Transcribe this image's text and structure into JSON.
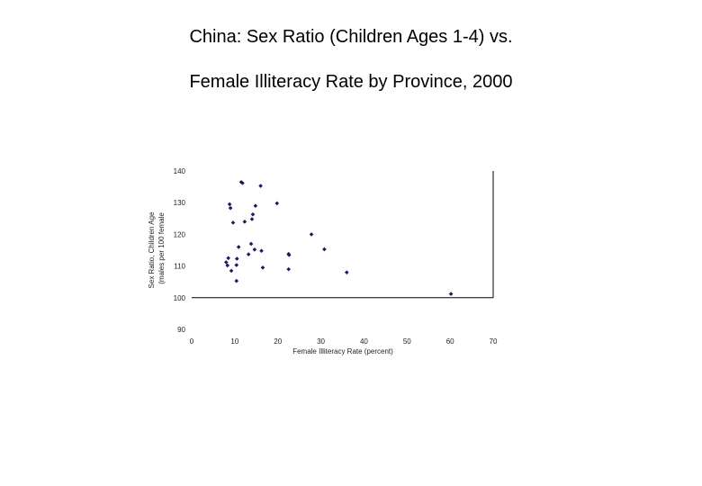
{
  "chart_data": {
    "type": "scatter",
    "title_line1": "China: Sex Ratio (Children Ages 1-4) vs.",
    "title_line2": "Female Illiteracy Rate by Province, 2000",
    "xlabel": "Female Illiteracy Rate (percent)",
    "ylabel_line1": "Sex Ratio, Children Age",
    "ylabel_line2": "(males per 100 female",
    "xlim": [
      0,
      70
    ],
    "ylim": [
      90,
      140
    ],
    "x_ticks": [
      "0",
      "10",
      "20",
      "30",
      "40",
      "50",
      "60",
      "70"
    ],
    "y_ticks": [
      "90",
      "100",
      "110",
      "120",
      "130",
      "140"
    ],
    "x_axis_crosses_y": 100,
    "point_color": "#1a1a5e",
    "points": [
      {
        "x": 11.5,
        "y": 136.5
      },
      {
        "x": 11.8,
        "y": 136.2
      },
      {
        "x": 16.0,
        "y": 135.3
      },
      {
        "x": 8.8,
        "y": 129.5
      },
      {
        "x": 9.0,
        "y": 128.3
      },
      {
        "x": 14.8,
        "y": 129.0
      },
      {
        "x": 19.8,
        "y": 129.8
      },
      {
        "x": 14.2,
        "y": 126.3
      },
      {
        "x": 14.0,
        "y": 124.8
      },
      {
        "x": 9.6,
        "y": 123.7
      },
      {
        "x": 12.3,
        "y": 124.0
      },
      {
        "x": 27.8,
        "y": 120.0
      },
      {
        "x": 13.8,
        "y": 117.0
      },
      {
        "x": 10.9,
        "y": 116.0
      },
      {
        "x": 30.8,
        "y": 115.3
      },
      {
        "x": 14.6,
        "y": 115.2
      },
      {
        "x": 16.2,
        "y": 114.8
      },
      {
        "x": 22.5,
        "y": 113.8
      },
      {
        "x": 22.6,
        "y": 113.5
      },
      {
        "x": 13.2,
        "y": 113.7
      },
      {
        "x": 8.5,
        "y": 112.5
      },
      {
        "x": 10.5,
        "y": 112.3
      },
      {
        "x": 8.0,
        "y": 111.2
      },
      {
        "x": 10.4,
        "y": 110.3
      },
      {
        "x": 8.3,
        "y": 110.2
      },
      {
        "x": 16.5,
        "y": 109.5
      },
      {
        "x": 22.5,
        "y": 109.0
      },
      {
        "x": 9.2,
        "y": 108.5
      },
      {
        "x": 36.0,
        "y": 108.0
      },
      {
        "x": 10.4,
        "y": 105.3
      },
      {
        "x": 60.2,
        "y": 101.2
      }
    ]
  }
}
